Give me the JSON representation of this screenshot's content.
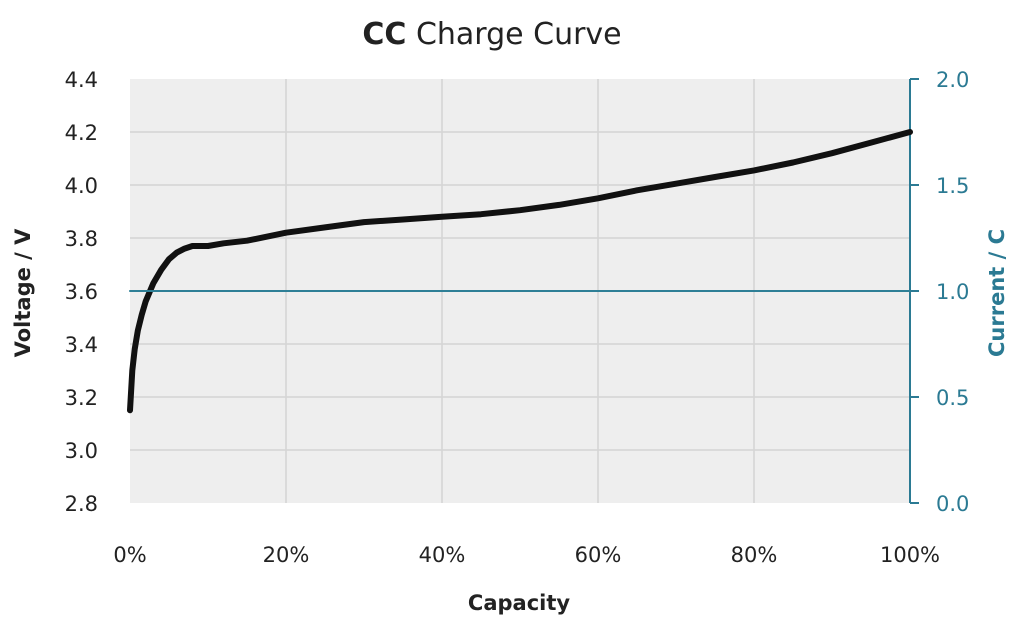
{
  "title": {
    "bold": "CC",
    "rest": " Charge Curve"
  },
  "colors": {
    "plot_bg": "#eeeeee",
    "grid": "#d4d4d4",
    "voltage": "#111111",
    "current": "#2e7f96",
    "right_axis": "#2b7a93"
  },
  "chart_data": {
    "type": "line",
    "title": "CC Charge Curve",
    "xlabel": "Capacity",
    "ylabel": "Voltage / V",
    "y2label": "Current / C",
    "xlim": [
      0,
      100
    ],
    "ylim": [
      2.8,
      4.4
    ],
    "y2lim": [
      0.0,
      2.0
    ],
    "x_ticks": [
      "0%",
      "20%",
      "40%",
      "60%",
      "80%",
      "100%"
    ],
    "y_ticks": [
      "2.8",
      "3.0",
      "3.2",
      "3.4",
      "3.6",
      "3.8",
      "4.0",
      "4.2",
      "4.4"
    ],
    "y2_ticks": [
      "0.0",
      "0.5",
      "1.0",
      "1.5",
      "2.0"
    ],
    "grid": true,
    "series": [
      {
        "axis": "left",
        "x": [
          0,
          0.3,
          0.6,
          1,
          1.5,
          2,
          3,
          4,
          5,
          6,
          7,
          8,
          9,
          10,
          12,
          15,
          20,
          25,
          30,
          35,
          40,
          45,
          50,
          55,
          60,
          65,
          70,
          75,
          80,
          85,
          90,
          95,
          100
        ],
        "values": [
          3.15,
          3.3,
          3.38,
          3.45,
          3.51,
          3.56,
          3.63,
          3.68,
          3.72,
          3.745,
          3.76,
          3.77,
          3.77,
          3.77,
          3.78,
          3.79,
          3.82,
          3.84,
          3.86,
          3.87,
          3.88,
          3.89,
          3.905,
          3.925,
          3.95,
          3.98,
          4.005,
          4.03,
          4.055,
          4.085,
          4.12,
          4.16,
          4.2
        ]
      },
      {
        "axis": "right",
        "x": [
          0,
          100
        ],
        "values": [
          1.0,
          1.0
        ]
      }
    ]
  }
}
